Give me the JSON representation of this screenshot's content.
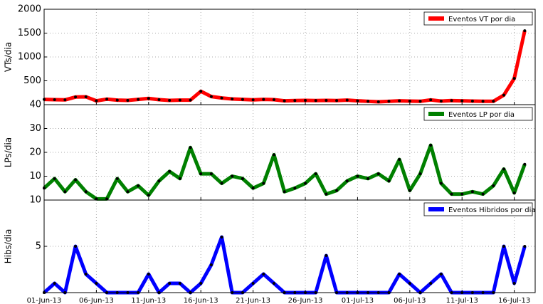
{
  "chart_data": [
    {
      "type": "line",
      "ylabel": "VTs/dia",
      "x": [
        "2013-06-01",
        "2013-06-02",
        "2013-06-03",
        "2013-06-04",
        "2013-06-05",
        "2013-06-06",
        "2013-06-07",
        "2013-06-08",
        "2013-06-09",
        "2013-06-10",
        "2013-06-11",
        "2013-06-12",
        "2013-06-13",
        "2013-06-14",
        "2013-06-15",
        "2013-06-16",
        "2013-06-17",
        "2013-06-18",
        "2013-06-19",
        "2013-06-20",
        "2013-06-21",
        "2013-06-22",
        "2013-06-23",
        "2013-06-24",
        "2013-06-25",
        "2013-06-26",
        "2013-06-27",
        "2013-06-28",
        "2013-06-29",
        "2013-06-30",
        "2013-07-01",
        "2013-07-02",
        "2013-07-03",
        "2013-07-04",
        "2013-07-05",
        "2013-07-06",
        "2013-07-07",
        "2013-07-08",
        "2013-07-09",
        "2013-07-10",
        "2013-07-11",
        "2013-07-12",
        "2013-07-13",
        "2013-07-14",
        "2013-07-15",
        "2013-07-16",
        "2013-07-17"
      ],
      "series": [
        {
          "name": "Eventos VT por dia",
          "color": "#ff0000",
          "values": [
            110,
            105,
            100,
            160,
            165,
            80,
            115,
            95,
            90,
            110,
            130,
            105,
            90,
            95,
            95,
            280,
            170,
            140,
            120,
            110,
            100,
            110,
            105,
            80,
            85,
            90,
            85,
            90,
            85,
            95,
            80,
            70,
            60,
            70,
            80,
            75,
            70,
            100,
            75,
            85,
            80,
            75,
            70,
            70,
            200,
            550,
            1550
          ]
        }
      ],
      "xlim": [
        "2013-06-01",
        "2013-07-18"
      ],
      "xticks": [
        "2013-06-01",
        "2013-06-06",
        "2013-06-11",
        "2013-06-16",
        "2013-06-21",
        "2013-06-26",
        "2013-07-01",
        "2013-07-06",
        "2013-07-11",
        "2013-07-16"
      ],
      "ylim": [
        0,
        2000
      ],
      "yticks": [
        500,
        1000,
        1500,
        2000
      ],
      "grid": true,
      "legend": "upper right"
    },
    {
      "type": "line",
      "ylabel": "LPs/dia",
      "x": [
        "2013-06-01",
        "2013-06-02",
        "2013-06-03",
        "2013-06-04",
        "2013-06-05",
        "2013-06-06",
        "2013-06-07",
        "2013-06-08",
        "2013-06-09",
        "2013-06-10",
        "2013-06-11",
        "2013-06-12",
        "2013-06-13",
        "2013-06-14",
        "2013-06-15",
        "2013-06-16",
        "2013-06-17",
        "2013-06-18",
        "2013-06-19",
        "2013-06-20",
        "2013-06-21",
        "2013-06-22",
        "2013-06-23",
        "2013-06-24",
        "2013-06-25",
        "2013-06-26",
        "2013-06-27",
        "2013-06-28",
        "2013-06-29",
        "2013-06-30",
        "2013-07-01",
        "2013-07-02",
        "2013-07-03",
        "2013-07-04",
        "2013-07-05",
        "2013-07-06",
        "2013-07-07",
        "2013-07-08",
        "2013-07-09",
        "2013-07-10",
        "2013-07-11",
        "2013-07-12",
        "2013-07-13",
        "2013-07-14",
        "2013-07-15",
        "2013-07-16",
        "2013-07-17"
      ],
      "series": [
        {
          "name": "Eventos LP por dia",
          "color": "#008000",
          "values": [
            5,
            9,
            3.5,
            8.5,
            3.5,
            0.5,
            0.5,
            9,
            3.5,
            6,
            2,
            8,
            12,
            9,
            22,
            11,
            11,
            7,
            10,
            9,
            5,
            7,
            19,
            3.5,
            5,
            7,
            11,
            2.5,
            4,
            8,
            10,
            9,
            11,
            8,
            17,
            4,
            11,
            23,
            7,
            2.5,
            2.5,
            3.5,
            2.5,
            6,
            13,
            3,
            15
          ]
        }
      ],
      "xlim": [
        "2013-06-01",
        "2013-07-18"
      ],
      "xticks": [
        "2013-06-01",
        "2013-06-06",
        "2013-06-11",
        "2013-06-16",
        "2013-06-21",
        "2013-06-26",
        "2013-07-01",
        "2013-07-06",
        "2013-07-11",
        "2013-07-16"
      ],
      "ylim": [
        0,
        40
      ],
      "yticks": [
        10,
        20,
        30,
        40
      ],
      "grid": true,
      "legend": "upper right"
    },
    {
      "type": "line",
      "ylabel": "Hibs/dia",
      "x": [
        "2013-06-01",
        "2013-06-02",
        "2013-06-03",
        "2013-06-04",
        "2013-06-05",
        "2013-06-06",
        "2013-06-07",
        "2013-06-08",
        "2013-06-09",
        "2013-06-10",
        "2013-06-11",
        "2013-06-12",
        "2013-06-13",
        "2013-06-14",
        "2013-06-15",
        "2013-06-16",
        "2013-06-17",
        "2013-06-18",
        "2013-06-19",
        "2013-06-20",
        "2013-06-21",
        "2013-06-22",
        "2013-06-23",
        "2013-06-24",
        "2013-06-25",
        "2013-06-26",
        "2013-06-27",
        "2013-06-28",
        "2013-06-29",
        "2013-06-30",
        "2013-07-01",
        "2013-07-02",
        "2013-07-03",
        "2013-07-04",
        "2013-07-05",
        "2013-07-06",
        "2013-07-07",
        "2013-07-08",
        "2013-07-09",
        "2013-07-10",
        "2013-07-11",
        "2013-07-12",
        "2013-07-13",
        "2013-07-14",
        "2013-07-15",
        "2013-07-16",
        "2013-07-17"
      ],
      "series": [
        {
          "name": "Eventos Hibridos por dia",
          "color": "#0000ff",
          "values": [
            0,
            1,
            0,
            5,
            2,
            1,
            0,
            0,
            0,
            0,
            2,
            0,
            1,
            1,
            0,
            1,
            3,
            6,
            0,
            0,
            1,
            2,
            1,
            0,
            0,
            0,
            0,
            4,
            0,
            0,
            0,
            0,
            0,
            0,
            2,
            1,
            0,
            1,
            2,
            0,
            0,
            0,
            0,
            0,
            5,
            1,
            5
          ]
        }
      ],
      "xlim": [
        "2013-06-01",
        "2013-07-18"
      ],
      "xticks": [
        {
          "value": "2013-06-01",
          "label": "01-Jun-13"
        },
        {
          "value": "2013-06-06",
          "label": "06-Jun-13"
        },
        {
          "value": "2013-06-11",
          "label": "11-Jun-13"
        },
        {
          "value": "2013-06-16",
          "label": "16-Jun-13"
        },
        {
          "value": "2013-06-21",
          "label": "21-Jun-13"
        },
        {
          "value": "2013-06-26",
          "label": "26-Jun-13"
        },
        {
          "value": "2013-07-01",
          "label": "01-Jul-13"
        },
        {
          "value": "2013-07-06",
          "label": "06-Jul-13"
        },
        {
          "value": "2013-07-11",
          "label": "11-Jul-13"
        },
        {
          "value": "2013-07-16",
          "label": "16-Jul-13"
        }
      ],
      "ylim": [
        0,
        10
      ],
      "yticks": [
        5,
        10
      ],
      "grid": true,
      "legend": "upper right"
    }
  ]
}
